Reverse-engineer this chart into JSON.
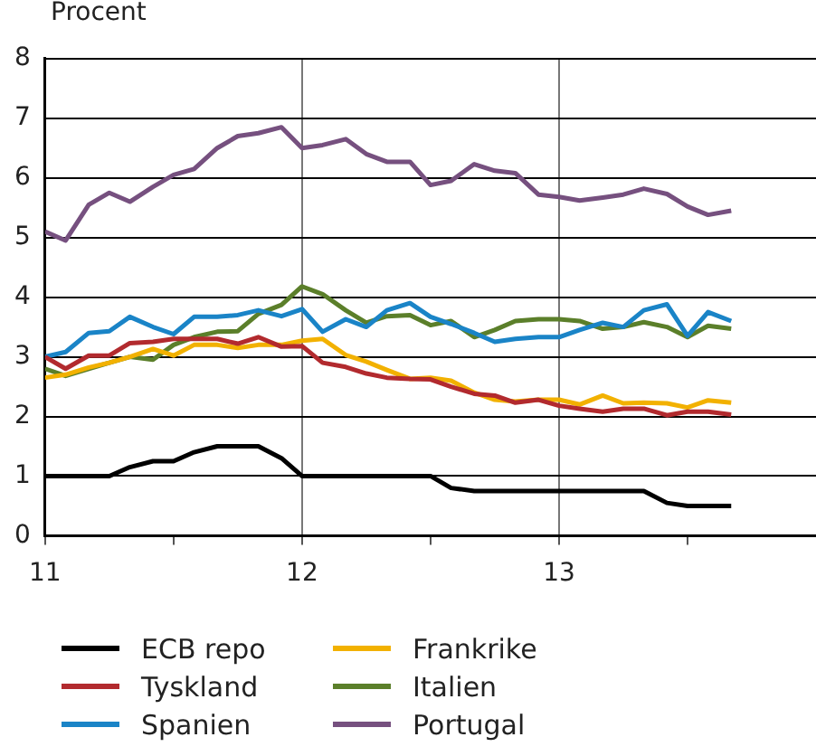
{
  "chart_data": {
    "type": "line",
    "ylabel": "Procent",
    "x": [
      11,
      11.08,
      11.17,
      11.25,
      11.33,
      11.42,
      11.5,
      11.58,
      11.67,
      11.75,
      11.83,
      11.92,
      12,
      12.08,
      12.17,
      12.25,
      12.33,
      12.42,
      12.5,
      12.58,
      12.67,
      12.75,
      12.83,
      12.92,
      13,
      13.08,
      13.17,
      13.25,
      13.33,
      13.42,
      13.5,
      13.58,
      13.67
    ],
    "xlim": [
      11,
      14
    ],
    "xticks": [
      11,
      {
        "value": 11.5,
        "label": null
      },
      12,
      {
        "value": 12.5,
        "label": null
      },
      13,
      {
        "value": 13.5,
        "label": null
      }
    ],
    "ylim": [
      0,
      8
    ],
    "yticks": [
      0,
      1,
      2,
      3,
      4,
      5,
      6,
      7,
      8
    ],
    "grid": true,
    "legend": "bottom",
    "marker": "none",
    "line_style": "solid",
    "series": [
      {
        "name": "ECB repo",
        "color": "#000000",
        "values": [
          1,
          1,
          1,
          1,
          1.15,
          1.25,
          1.25,
          1.4,
          1.5,
          1.5,
          1.5,
          1.3,
          1,
          1,
          1,
          1,
          1,
          1,
          1,
          0.8,
          0.75,
          0.75,
          0.75,
          0.75,
          0.75,
          0.75,
          0.75,
          0.75,
          0.75,
          0.55,
          0.5,
          0.5,
          0.5
        ]
      },
      {
        "name": "Tyskland",
        "color": "#b22a2e",
        "values": [
          3,
          2.8,
          3.02,
          3.02,
          3.23,
          3.25,
          3.3,
          3.3,
          3.3,
          3.22,
          3.33,
          3.17,
          3.18,
          2.9,
          2.83,
          2.72,
          2.65,
          2.63,
          2.62,
          2.5,
          2.38,
          2.35,
          2.23,
          2.28,
          2.18,
          2.13,
          2.08,
          2.13,
          2.13,
          2.02,
          2.08,
          2.08,
          2.03
        ]
      },
      {
        "name": "Spanien",
        "color": "#1a84c7",
        "values": [
          3,
          3.08,
          3.4,
          3.43,
          3.67,
          3.5,
          3.38,
          3.67,
          3.67,
          3.7,
          3.78,
          3.68,
          3.8,
          3.42,
          3.63,
          3.5,
          3.78,
          3.9,
          3.67,
          3.55,
          3.4,
          3.25,
          3.3,
          3.33,
          3.33,
          3.45,
          3.57,
          3.5,
          3.78,
          3.88,
          3.35,
          3.75,
          3.6
        ]
      },
      {
        "name": "Frankrike",
        "color": "#f2b100",
        "values": [
          2.65,
          2.7,
          2.82,
          2.9,
          3,
          3.13,
          3.02,
          3.2,
          3.2,
          3.15,
          3.2,
          3.2,
          3.27,
          3.3,
          3.03,
          2.92,
          2.78,
          2.63,
          2.65,
          2.6,
          2.4,
          2.28,
          2.25,
          2.28,
          2.28,
          2.2,
          2.35,
          2.22,
          2.23,
          2.22,
          2.15,
          2.27,
          2.23
        ]
      },
      {
        "name": "Italien",
        "color": "#5b7f2a",
        "values": [
          2.8,
          2.68,
          2.8,
          2.9,
          3,
          2.95,
          3.2,
          3.33,
          3.42,
          3.43,
          3.72,
          3.87,
          4.18,
          4.05,
          3.78,
          3.57,
          3.68,
          3.7,
          3.53,
          3.6,
          3.33,
          3.45,
          3.6,
          3.63,
          3.63,
          3.6,
          3.47,
          3.5,
          3.58,
          3.5,
          3.33,
          3.52,
          3.47
        ]
      },
      {
        "name": "Portugal",
        "color": "#76507f",
        "values": [
          5.1,
          4.95,
          5.55,
          5.75,
          5.6,
          5.85,
          6.05,
          6.15,
          6.5,
          6.7,
          6.75,
          6.85,
          6.5,
          6.55,
          6.65,
          6.4,
          6.27,
          6.27,
          5.88,
          5.95,
          6.23,
          6.12,
          6.08,
          5.72,
          5.68,
          5.62,
          5.67,
          5.72,
          5.82,
          5.73,
          5.52,
          5.38,
          5.45
        ]
      }
    ]
  }
}
